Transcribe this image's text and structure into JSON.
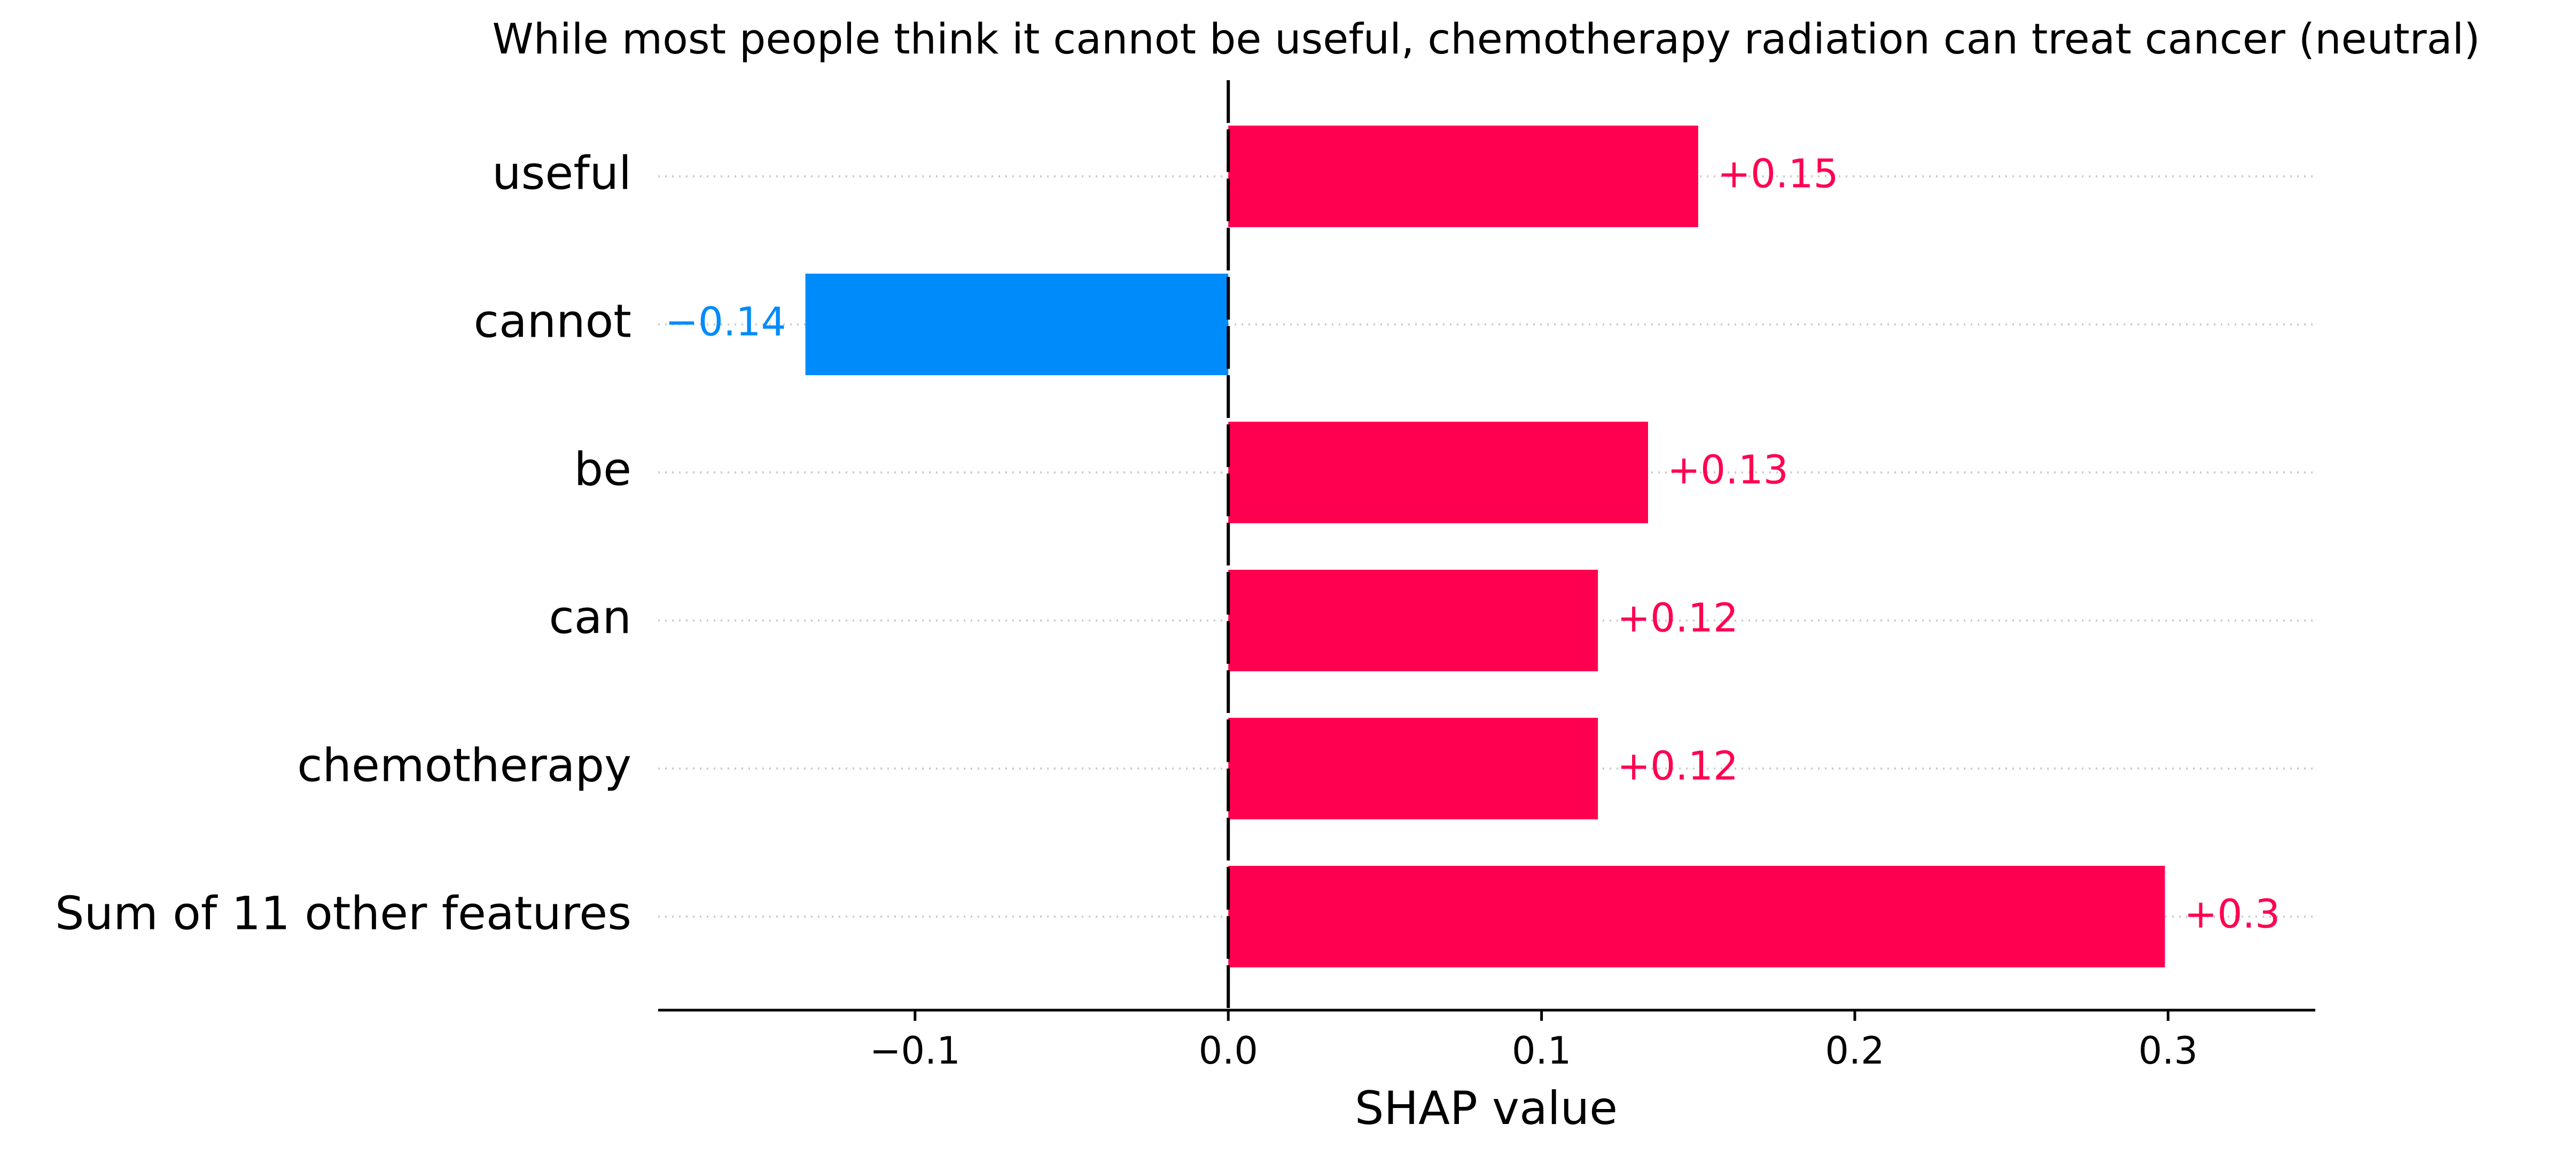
{
  "chart_data": {
    "type": "bar",
    "orientation": "horizontal",
    "title": "While most people think it cannot be useful, chemotherapy radiation can treat cancer (neutral)",
    "xlabel": "SHAP value",
    "ylabel": "",
    "categories": [
      "useful",
      "cannot",
      "be",
      "can",
      "chemotherapy",
      "Sum of 11 other features"
    ],
    "values": [
      0.15,
      -0.135,
      0.134,
      0.118,
      0.118,
      0.299
    ],
    "value_labels": [
      "+0.15",
      "−0.14",
      "+0.13",
      "+0.12",
      "+0.12",
      "+0.3"
    ],
    "xlim": [
      -0.182,
      0.347
    ],
    "xticks": [
      -0.1,
      0.0,
      0.1,
      0.2,
      0.3
    ],
    "xtick_labels": [
      "−0.1",
      "0.0",
      "0.1",
      "0.2",
      "0.3"
    ],
    "grid": false,
    "legend": "none",
    "colors": {
      "positive": "#ff0051",
      "negative": "#008bfb",
      "axis": "#000000",
      "row_guide": "#cccccc"
    }
  }
}
